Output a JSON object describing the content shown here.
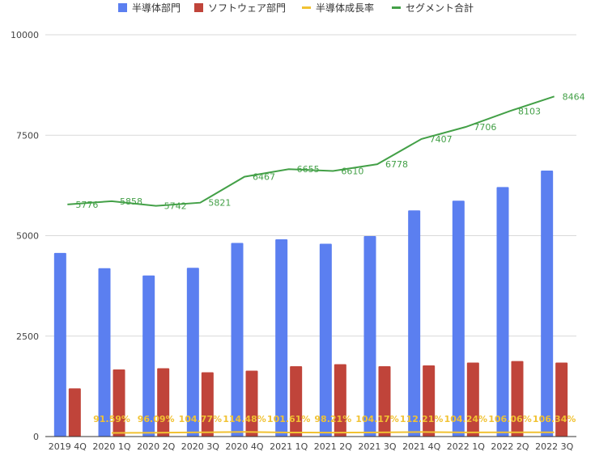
{
  "chart_data": {
    "type": "bar",
    "title": "",
    "xlabel": "",
    "ylabel": "",
    "ylim": [
      0,
      10000
    ],
    "yticks": [
      0,
      2500,
      5000,
      7500,
      10000
    ],
    "grid": true,
    "legend_position": "top-center",
    "categories": [
      "2019 4Q",
      "2020 1Q",
      "2020 2Q",
      "2020 3Q",
      "2020 4Q",
      "2021 1Q",
      "2021 2Q",
      "2021 3Q",
      "2021 4Q",
      "2022 1Q",
      "2022 2Q",
      "2022 3Q"
    ],
    "series": [
      {
        "name": "半導体部門",
        "type": "bar",
        "color": "#5b7ff0",
        "values": [
          4570,
          4190,
          4010,
          4200,
          4820,
          4910,
          4800,
          4990,
          5630,
          5870,
          6210,
          6620
        ]
      },
      {
        "name": "ソフトウェア部門",
        "type": "bar",
        "color": "#c0443a",
        "values": [
          1200,
          1670,
          1700,
          1600,
          1640,
          1750,
          1800,
          1750,
          1770,
          1840,
          1880,
          1840
        ]
      },
      {
        "name": "半導体成長率",
        "type": "line",
        "color": "#f1c232",
        "values": [
          null,
          91.59,
          96.09,
          104.77,
          114.48,
          101.61,
          98.21,
          104.17,
          112.21,
          104.24,
          106.06,
          106.34
        ],
        "labels": [
          "",
          "91.59%",
          "96.09%",
          "104.77%",
          "114.48%",
          "101.61%",
          "98.21%",
          "104.17%",
          "112.21%",
          "104.24%",
          "106.06%",
          "106.34%"
        ]
      },
      {
        "name": "セグメント合計",
        "type": "line",
        "color": "#43a047",
        "values": [
          5776,
          5858,
          5742,
          5821,
          6467,
          6655,
          6610,
          6778,
          7407,
          7706,
          8103,
          8464
        ]
      }
    ]
  }
}
